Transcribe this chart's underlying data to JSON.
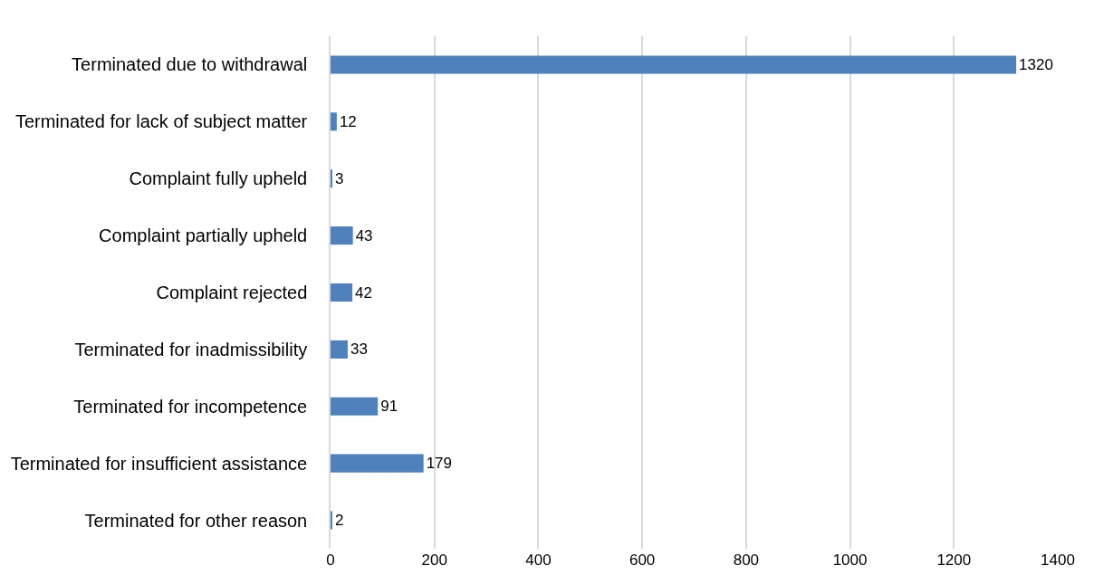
{
  "chart_data": {
    "type": "bar",
    "orientation": "horizontal",
    "categories": [
      "Terminated due to withdrawal",
      "Terminated for lack of subject matter",
      "Complaint fully upheld",
      "Complaint partially upheld",
      "Complaint rejected",
      "Terminated for inadmissibility",
      "Terminated for incompetence",
      "Terminated for insufficient assistance",
      "Terminated for other reason"
    ],
    "values": [
      1320,
      12,
      3,
      43,
      42,
      33,
      91,
      179,
      2
    ],
    "color": "#4f81bd",
    "xlim": [
      0,
      1400
    ],
    "xticks": [
      0,
      200,
      400,
      600,
      800,
      1000,
      1200,
      1400
    ],
    "grid": "x",
    "data_labels": true
  }
}
